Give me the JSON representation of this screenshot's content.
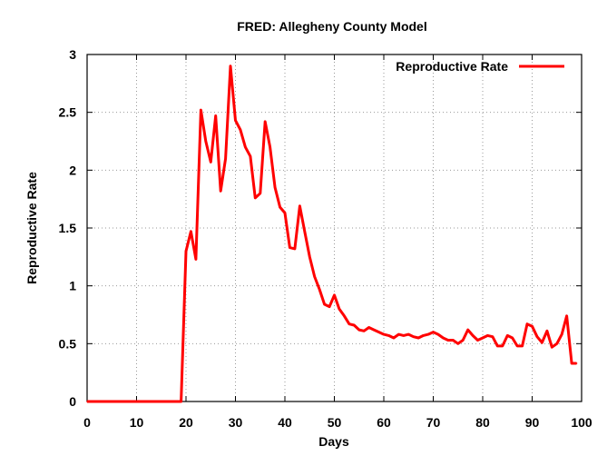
{
  "chart_data": {
    "type": "line",
    "title": "FRED: Allegheny County Model",
    "xlabel": "Days",
    "ylabel": "Reproductive Rate",
    "xlim": [
      0,
      100
    ],
    "ylim": [
      0,
      3
    ],
    "xticks": [
      0,
      10,
      20,
      30,
      40,
      50,
      60,
      70,
      80,
      90,
      100
    ],
    "yticks": [
      0,
      0.5,
      1,
      1.5,
      2,
      2.5,
      3
    ],
    "ytick_labels": [
      "0",
      "0.5",
      "1",
      "1.5",
      "2",
      "2.5",
      "3"
    ],
    "grid": true,
    "legend_position": "top-right",
    "series": [
      {
        "name": "Reproductive Rate",
        "color": "#ff0000",
        "x": [
          0,
          1,
          2,
          3,
          4,
          5,
          6,
          7,
          8,
          9,
          10,
          11,
          12,
          13,
          14,
          15,
          16,
          17,
          18,
          19,
          20,
          21,
          22,
          23,
          24,
          25,
          26,
          27,
          28,
          29,
          30,
          31,
          32,
          33,
          34,
          35,
          36,
          37,
          38,
          39,
          40,
          41,
          42,
          43,
          44,
          45,
          46,
          47,
          48,
          49,
          50,
          51,
          52,
          53,
          54,
          55,
          56,
          57,
          58,
          59,
          60,
          61,
          62,
          63,
          64,
          65,
          66,
          67,
          68,
          69,
          70,
          71,
          72,
          73,
          74,
          75,
          76,
          77,
          78,
          79,
          80,
          81,
          82,
          83,
          84,
          85,
          86,
          87,
          88,
          89,
          90,
          91,
          92,
          93,
          94,
          95,
          96,
          97,
          98,
          99
        ],
        "y": [
          0,
          0,
          0,
          0,
          0,
          0,
          0,
          0,
          0,
          0,
          0,
          0,
          0,
          0,
          0,
          0,
          0,
          0,
          0,
          0,
          1.3,
          1.47,
          1.23,
          2.52,
          2.25,
          2.07,
          2.47,
          1.82,
          2.1,
          2.9,
          2.43,
          2.35,
          2.2,
          2.12,
          1.76,
          1.8,
          2.42,
          2.2,
          1.85,
          1.68,
          1.63,
          1.33,
          1.32,
          1.69,
          1.47,
          1.25,
          1.08,
          0.97,
          0.84,
          0.82,
          0.92,
          0.8,
          0.74,
          0.67,
          0.66,
          0.62,
          0.61,
          0.64,
          0.62,
          0.6,
          0.58,
          0.57,
          0.55,
          0.58,
          0.57,
          0.58,
          0.56,
          0.55,
          0.57,
          0.58,
          0.6,
          0.58,
          0.55,
          0.53,
          0.53,
          0.5,
          0.53,
          0.62,
          0.57,
          0.53,
          0.55,
          0.57,
          0.56,
          0.48,
          0.48,
          0.57,
          0.55,
          0.48,
          0.48,
          0.67,
          0.65,
          0.56,
          0.51,
          0.61,
          0.47,
          0.5,
          0.58,
          0.74,
          0.33,
          0.33
        ]
      }
    ]
  }
}
